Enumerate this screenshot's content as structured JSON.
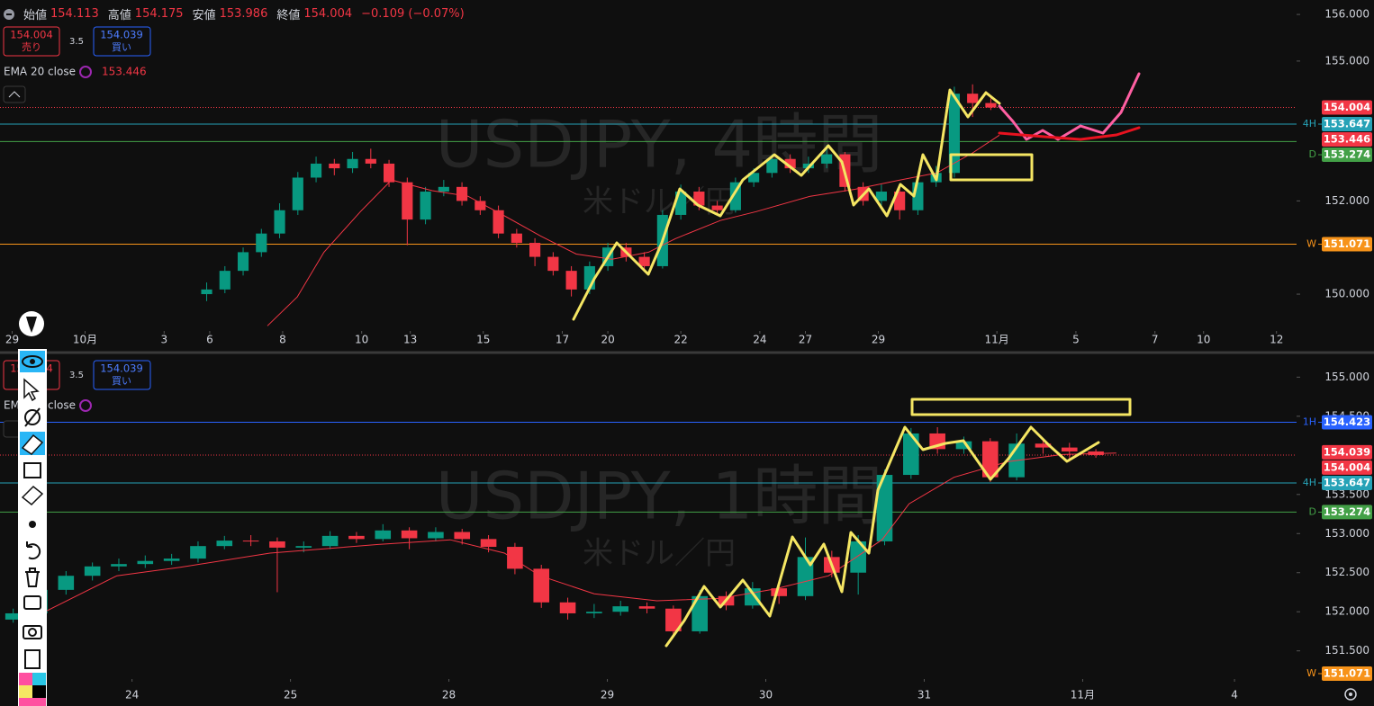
{
  "header": {
    "stats": [
      {
        "label": "始値",
        "value": 154.113
      },
      {
        "label": "高値",
        "value": 154.175
      },
      {
        "label": "安値",
        "value": 153.986
      },
      {
        "label": "終値",
        "value": 154.004
      }
    ],
    "change": "−0.109 (−0.07%)"
  },
  "chart_data": [
    {
      "type": "candlestick",
      "title": "USDJPY, 4時間",
      "subtitle": "米ドル／円",
      "bid": {
        "value": 154.004,
        "label": "売り"
      },
      "spread": 3.5,
      "ask": {
        "value": 154.039,
        "label": "買い"
      },
      "show_ask": false,
      "xlim": [
        0,
        213.3
      ],
      "ylim": [
        149.21,
        156.31
      ],
      "xticks": [
        {
          "value": 2,
          "label": "29"
        },
        {
          "value": 14,
          "label": "10月"
        },
        {
          "value": 27,
          "label": "3"
        },
        {
          "value": 34.5,
          "label": "6"
        },
        {
          "value": 46.5,
          "label": "8"
        },
        {
          "value": 59.5,
          "label": "10"
        },
        {
          "value": 67.5,
          "label": "13"
        },
        {
          "value": 79.5,
          "label": "15"
        },
        {
          "value": 92.5,
          "label": "17"
        },
        {
          "value": 100,
          "label": "20"
        },
        {
          "value": 112,
          "label": "22"
        },
        {
          "value": 125,
          "label": "24"
        },
        {
          "value": 132.5,
          "label": "27"
        },
        {
          "value": 144.5,
          "label": "29"
        },
        {
          "value": 164,
          "label": "11月"
        },
        {
          "value": 177,
          "label": "5"
        },
        {
          "value": 190,
          "label": "7"
        },
        {
          "value": 198,
          "label": "10"
        },
        {
          "value": 210,
          "label": "12"
        }
      ],
      "yticks": [
        {
          "value": 156,
          "label": "156.000"
        },
        {
          "value": 155,
          "label": "155.000"
        },
        {
          "value": 152,
          "label": "152.000"
        },
        {
          "value": 150,
          "label": "150.000"
        }
      ],
      "up_color": "#089981",
      "down_color": "#f23645",
      "x": [
        34,
        37,
        40,
        43,
        46,
        49,
        52,
        55,
        58,
        61,
        64,
        67,
        70,
        73,
        76,
        79,
        82,
        85,
        88,
        91,
        94,
        97,
        100,
        103,
        106,
        109,
        112,
        115,
        118,
        121,
        124,
        127,
        130,
        133,
        136,
        139,
        142,
        145,
        148,
        151,
        154,
        157,
        160,
        163
      ],
      "ohlc": [
        [
          150.0,
          150.25,
          149.85,
          150.1
        ],
        [
          150.1,
          150.6,
          150.02,
          150.5
        ],
        [
          150.5,
          151.0,
          150.4,
          150.9
        ],
        [
          150.9,
          151.4,
          150.8,
          151.3
        ],
        [
          151.3,
          151.95,
          151.2,
          151.8
        ],
        [
          151.8,
          152.62,
          151.7,
          152.5
        ],
        [
          152.5,
          152.95,
          152.4,
          152.8
        ],
        [
          152.8,
          152.9,
          152.55,
          152.7
        ],
        [
          152.7,
          153.05,
          152.6,
          152.9
        ],
        [
          152.9,
          153.12,
          152.7,
          152.8
        ],
        [
          152.8,
          152.88,
          152.3,
          152.4
        ],
        [
          152.4,
          152.5,
          151.05,
          151.6
        ],
        [
          151.6,
          152.3,
          151.5,
          152.2
        ],
        [
          152.2,
          152.45,
          152.1,
          152.3
        ],
        [
          152.3,
          152.4,
          151.9,
          152.0
        ],
        [
          152.0,
          152.1,
          151.7,
          151.8
        ],
        [
          151.8,
          151.9,
          151.2,
          151.3
        ],
        [
          151.3,
          151.4,
          151.0,
          151.1
        ],
        [
          151.1,
          151.2,
          150.6,
          150.8
        ],
        [
          150.8,
          150.9,
          150.4,
          150.5
        ],
        [
          150.5,
          150.6,
          149.95,
          150.1
        ],
        [
          150.1,
          150.7,
          150.0,
          150.6
        ],
        [
          150.6,
          151.1,
          150.5,
          151.0
        ],
        [
          151.0,
          151.1,
          150.7,
          150.8
        ],
        [
          150.8,
          150.9,
          150.5,
          150.6
        ],
        [
          150.6,
          151.8,
          150.55,
          151.7
        ],
        [
          151.7,
          152.35,
          151.6,
          152.2
        ],
        [
          152.2,
          152.3,
          151.8,
          151.9
        ],
        [
          151.9,
          152.0,
          151.7,
          151.8
        ],
        [
          151.8,
          152.5,
          151.75,
          152.4
        ],
        [
          152.4,
          152.7,
          152.3,
          152.6
        ],
        [
          152.6,
          153.0,
          152.5,
          152.9
        ],
        [
          152.9,
          153.0,
          152.6,
          152.7
        ],
        [
          152.7,
          152.95,
          152.6,
          152.8
        ],
        [
          152.8,
          153.2,
          152.7,
          153.0
        ],
        [
          153.0,
          153.05,
          152.2,
          152.3
        ],
        [
          152.3,
          152.4,
          151.9,
          152.0
        ],
        [
          152.0,
          152.35,
          151.9,
          152.2
        ],
        [
          152.2,
          152.3,
          151.6,
          151.8
        ],
        [
          151.8,
          152.5,
          151.7,
          152.4
        ],
        [
          152.4,
          152.75,
          152.3,
          152.6
        ],
        [
          152.6,
          154.45,
          152.5,
          154.3
        ],
        [
          154.3,
          154.5,
          153.8,
          154.1
        ],
        [
          154.1,
          154.2,
          153.95,
          154.004
        ]
      ],
      "ema": {
        "name": "EMA 20 close",
        "value": 153.446,
        "color": "#f23645",
        "x": [
          44,
          48.9,
          53.3,
          59.3,
          64.4,
          71.1,
          77,
          83,
          88.9,
          94.8,
          100.7,
          106.7,
          111.1,
          118.5,
          124.4,
          133.3,
          140.7,
          148.1,
          154.1,
          160,
          164.4
        ],
        "values": [
          149.32,
          149.94,
          150.9,
          151.77,
          152.45,
          152.22,
          152.1,
          151.68,
          151.25,
          150.86,
          150.75,
          150.9,
          151.19,
          151.58,
          151.77,
          152.1,
          152.25,
          152.45,
          152.6,
          153.03,
          153.41
        ]
      },
      "last": {
        "value": 154.004,
        "color": "#f23645"
      },
      "price_lines": [
        {
          "label": "4H",
          "value": 153.647,
          "color": "#26a2b7"
        },
        {
          "label": "D",
          "value": 153.274,
          "color": "#43a047"
        },
        {
          "label": "W",
          "value": 151.071,
          "color": "#f7931a"
        }
      ]
    },
    {
      "type": "candlestick",
      "title": "USDJPY, 1時間",
      "subtitle": "米ドル／円",
      "bid": {
        "value": 154.004,
        "label": "売り"
      },
      "spread": 3.5,
      "ask": {
        "value": 154.039,
        "label": "買い"
      },
      "show_ask": true,
      "xlim": [
        0,
        196.4
      ],
      "ylim": [
        151.14,
        155.28
      ],
      "xticks": [
        {
          "value": 20,
          "label": "24"
        },
        {
          "value": 44,
          "label": "25"
        },
        {
          "value": 68,
          "label": "28"
        },
        {
          "value": 92,
          "label": "29"
        },
        {
          "value": 116,
          "label": "30"
        },
        {
          "value": 140,
          "label": "31"
        },
        {
          "value": 164,
          "label": "11月"
        },
        {
          "value": 187,
          "label": "4"
        }
      ],
      "yticks": [
        {
          "value": 155,
          "label": "155.000"
        },
        {
          "value": 154.5,
          "label": "154.500"
        },
        {
          "value": 153.5,
          "label": "153.500"
        },
        {
          "value": 153,
          "label": "153.000"
        },
        {
          "value": 152.5,
          "label": "152.500"
        },
        {
          "value": 152,
          "label": "152.000"
        },
        {
          "value": 151.5,
          "label": "151.500"
        }
      ],
      "up_color": "#089981",
      "down_color": "#f23645",
      "x": [
        2,
        6,
        10,
        14,
        18,
        22,
        26,
        30,
        34,
        38,
        42,
        46,
        50,
        54,
        58,
        62,
        66,
        70,
        74,
        78,
        82,
        86,
        90,
        94,
        98,
        102,
        106,
        110,
        114,
        118,
        122,
        126,
        130,
        134,
        138,
        142,
        146,
        150,
        154,
        158,
        162,
        166
      ],
      "ohlc": [
        [
          151.9,
          152.04,
          151.86,
          151.98
        ],
        [
          151.98,
          152.33,
          151.95,
          152.28
        ],
        [
          152.28,
          152.52,
          152.22,
          152.46
        ],
        [
          152.46,
          152.63,
          152.4,
          152.58
        ],
        [
          152.58,
          152.68,
          152.52,
          152.61
        ],
        [
          152.61,
          152.72,
          152.56,
          152.65
        ],
        [
          152.65,
          152.74,
          152.6,
          152.68
        ],
        [
          152.68,
          152.9,
          152.63,
          152.84
        ],
        [
          152.84,
          152.97,
          152.8,
          152.91
        ],
        [
          152.91,
          152.98,
          152.84,
          152.9
        ],
        [
          152.9,
          152.95,
          152.25,
          152.82
        ],
        [
          152.82,
          152.9,
          152.76,
          152.84
        ],
        [
          152.84,
          153.03,
          152.8,
          152.97
        ],
        [
          152.97,
          153.02,
          152.88,
          152.93
        ],
        [
          152.93,
          153.12,
          152.9,
          153.04
        ],
        [
          153.04,
          153.08,
          152.8,
          152.94
        ],
        [
          152.94,
          153.08,
          152.9,
          153.02
        ],
        [
          153.02,
          153.06,
          152.86,
          152.93
        ],
        [
          152.93,
          152.98,
          152.76,
          152.83
        ],
        [
          152.83,
          152.88,
          152.48,
          152.55
        ],
        [
          152.55,
          152.6,
          152.05,
          152.12
        ],
        [
          152.12,
          152.18,
          151.9,
          151.98
        ],
        [
          151.98,
          152.1,
          151.92,
          152.0
        ],
        [
          152.0,
          152.14,
          151.95,
          152.07
        ],
        [
          152.07,
          152.12,
          151.98,
          152.04
        ],
        [
          152.04,
          152.08,
          151.68,
          151.75
        ],
        [
          151.75,
          152.28,
          151.72,
          152.2
        ],
        [
          152.2,
          152.26,
          152.02,
          152.08
        ],
        [
          152.08,
          152.38,
          152.04,
          152.3
        ],
        [
          152.3,
          152.36,
          152.1,
          152.2
        ],
        [
          152.2,
          152.95,
          152.15,
          152.7
        ],
        [
          152.7,
          152.78,
          152.44,
          152.5
        ],
        [
          152.5,
          152.98,
          152.22,
          152.9
        ],
        [
          152.9,
          153.82,
          152.85,
          153.75
        ],
        [
          153.75,
          154.35,
          153.7,
          154.28
        ],
        [
          154.28,
          154.36,
          154.02,
          154.08
        ],
        [
          154.08,
          154.24,
          154.02,
          154.18
        ],
        [
          154.18,
          154.22,
          153.66,
          153.72
        ],
        [
          153.72,
          154.28,
          153.68,
          154.15
        ],
        [
          154.15,
          154.2,
          154.02,
          154.1
        ],
        [
          154.1,
          154.16,
          153.92,
          154.05
        ],
        [
          154.05,
          154.08,
          153.97,
          154.004
        ]
      ],
      "ema": {
        "name": "EMA 20 close",
        "color": "#f23645",
        "x": [
          6.8,
          17.7,
          27.3,
          40.9,
          57.3,
          68.2,
          76.4,
          81.8,
          90,
          99.5,
          109.1,
          117.3,
          125.5,
          133.6,
          137.7,
          144.5,
          152.7,
          160.9,
          169.1
        ],
        "values": [
          152.0,
          152.46,
          152.57,
          152.75,
          152.86,
          152.92,
          152.75,
          152.46,
          152.23,
          152.14,
          152.17,
          152.29,
          152.46,
          152.92,
          153.38,
          153.72,
          153.92,
          154.01,
          154.03
        ]
      },
      "last": {
        "value": 154.004,
        "color": "#f23645"
      },
      "price_lines": [
        {
          "label": "1H",
          "value": 154.423,
          "color": "#2962ff"
        },
        {
          "label": "4H",
          "value": 153.647,
          "color": "#26a2b7"
        },
        {
          "label": "D",
          "value": 153.274,
          "color": "#43a047"
        },
        {
          "label": "W",
          "value": 151.071,
          "color": "#f7931a"
        }
      ]
    }
  ]
}
